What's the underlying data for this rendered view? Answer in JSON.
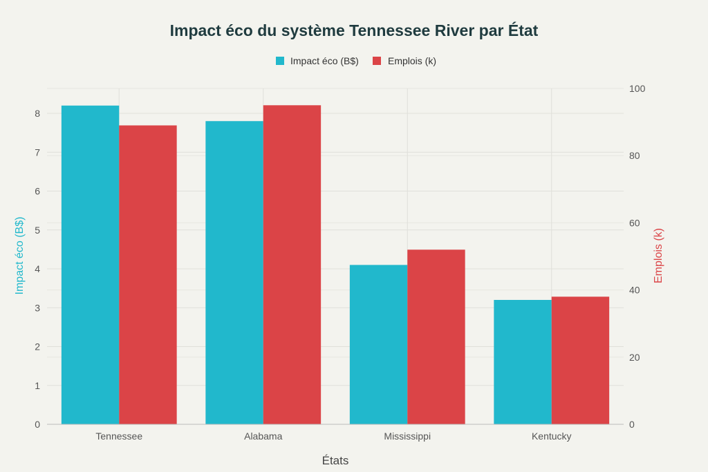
{
  "chart_data": {
    "type": "bar",
    "title": "Impact éco du système Tennessee River par État",
    "categories": [
      "Tennessee",
      "Alabama",
      "Mississippi",
      "Kentucky"
    ],
    "series": [
      {
        "name": "Impact éco (B$)",
        "values": [
          8.2,
          7.8,
          4.1,
          3.2
        ],
        "axis": "left",
        "color": "#21b8cc"
      },
      {
        "name": "Emplois (k)",
        "values": [
          89,
          95,
          52,
          38
        ],
        "axis": "right",
        "color": "#db4447"
      }
    ],
    "xlabel": "États",
    "ylabel_left": "Impact éco (B$)",
    "ylabel_right": "Emplois (k)",
    "ylim_left": [
      0,
      8.64
    ],
    "ylim_right": [
      0,
      100
    ],
    "yticks_left": [
      "0",
      "1",
      "2",
      "3",
      "4",
      "5",
      "6",
      "7",
      "8"
    ],
    "yticks_right": [
      "0",
      "20",
      "40",
      "60",
      "80",
      "100"
    ],
    "grid": true,
    "legend": "top-center"
  }
}
